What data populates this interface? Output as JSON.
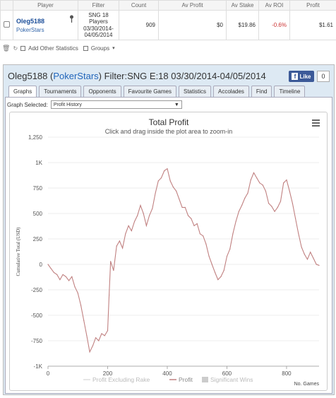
{
  "table": {
    "headers": [
      "",
      "Player",
      "Filter",
      "Count",
      "Av Profit",
      "Av Stake",
      "Av ROI",
      "Profit"
    ],
    "row": {
      "player": "Oleg5188",
      "site": "PokerStars",
      "filter": "SNG 18 Players 03/30/2014-04/05/2014",
      "count": "909",
      "av_profit": "$0",
      "av_stake": "$19.86",
      "av_roi": "-0.6%",
      "profit": "$1.61"
    }
  },
  "toolbar2": {
    "add_stats": "Add Other Statistics",
    "groups": "Groups"
  },
  "panel": {
    "title_player": "Oleg5188",
    "title_site": "PokerStars",
    "title_filter": "Filter:SNG E:18 03/30/2014-04/05/2014",
    "fb_like": "Like",
    "fb_count": "0",
    "tabs": [
      "Graphs",
      "Tournaments",
      "Opponents",
      "Favourite Games",
      "Statistics",
      "Accolades",
      "Find",
      "Timeline"
    ],
    "graph_selected_label": "Graph Selected:",
    "graph_selected_value": "Profit History"
  },
  "colors": {
    "profit_line": "#c08080",
    "grid": "#dddddd",
    "roi": "#cc3333"
  },
  "chart_data": {
    "type": "line",
    "title": "Total Profit",
    "subtitle": "Click and drag inside the plot area to zoom-in",
    "ylabel": "Cumulative Total (USD)",
    "xlabel": "No. Games",
    "ylim": [
      -1000,
      1250
    ],
    "xlim": [
      0,
      909
    ],
    "yticks": [
      "1,250",
      "1K",
      "750",
      "500",
      "250",
      "0",
      "-250",
      "-500",
      "-750",
      "-1K"
    ],
    "xticks": [
      "0",
      "200",
      "400",
      "600",
      "800"
    ],
    "ytick_values": [
      1250,
      1000,
      750,
      500,
      250,
      0,
      -250,
      -500,
      -750,
      -1000
    ],
    "xtick_values": [
      0,
      200,
      400,
      600,
      800
    ],
    "legend": [
      "Profit Excluding Rake",
      "Profit",
      "Significant Wins"
    ],
    "series": [
      {
        "name": "Profit",
        "points": [
          [
            0,
            0
          ],
          [
            10,
            -40
          ],
          [
            20,
            -80
          ],
          [
            30,
            -100
          ],
          [
            40,
            -150
          ],
          [
            50,
            -100
          ],
          [
            60,
            -120
          ],
          [
            70,
            -160
          ],
          [
            80,
            -120
          ],
          [
            90,
            -220
          ],
          [
            100,
            -280
          ],
          [
            110,
            -400
          ],
          [
            120,
            -550
          ],
          [
            130,
            -700
          ],
          [
            140,
            -860
          ],
          [
            150,
            -800
          ],
          [
            160,
            -720
          ],
          [
            170,
            -750
          ],
          [
            180,
            -680
          ],
          [
            190,
            -700
          ],
          [
            200,
            -650
          ],
          [
            205,
            -300
          ],
          [
            210,
            30
          ],
          [
            220,
            -60
          ],
          [
            230,
            180
          ],
          [
            240,
            230
          ],
          [
            250,
            160
          ],
          [
            260,
            300
          ],
          [
            270,
            380
          ],
          [
            280,
            330
          ],
          [
            290,
            420
          ],
          [
            300,
            480
          ],
          [
            310,
            580
          ],
          [
            320,
            500
          ],
          [
            330,
            380
          ],
          [
            340,
            480
          ],
          [
            350,
            550
          ],
          [
            360,
            700
          ],
          [
            370,
            820
          ],
          [
            380,
            850
          ],
          [
            390,
            920
          ],
          [
            400,
            940
          ],
          [
            410,
            820
          ],
          [
            420,
            760
          ],
          [
            430,
            720
          ],
          [
            440,
            640
          ],
          [
            450,
            560
          ],
          [
            460,
            560
          ],
          [
            470,
            480
          ],
          [
            480,
            450
          ],
          [
            490,
            380
          ],
          [
            500,
            400
          ],
          [
            510,
            300
          ],
          [
            520,
            280
          ],
          [
            530,
            200
          ],
          [
            540,
            80
          ],
          [
            550,
            0
          ],
          [
            560,
            -80
          ],
          [
            570,
            -150
          ],
          [
            580,
            -120
          ],
          [
            590,
            -60
          ],
          [
            600,
            80
          ],
          [
            610,
            150
          ],
          [
            620,
            300
          ],
          [
            630,
            420
          ],
          [
            640,
            520
          ],
          [
            650,
            580
          ],
          [
            660,
            650
          ],
          [
            670,
            700
          ],
          [
            680,
            830
          ],
          [
            690,
            900
          ],
          [
            700,
            850
          ],
          [
            710,
            800
          ],
          [
            720,
            780
          ],
          [
            730,
            720
          ],
          [
            740,
            600
          ],
          [
            750,
            570
          ],
          [
            760,
            520
          ],
          [
            770,
            560
          ],
          [
            780,
            620
          ],
          [
            790,
            800
          ],
          [
            800,
            830
          ],
          [
            810,
            720
          ],
          [
            820,
            600
          ],
          [
            830,
            450
          ],
          [
            840,
            300
          ],
          [
            850,
            170
          ],
          [
            860,
            100
          ],
          [
            870,
            50
          ],
          [
            880,
            120
          ],
          [
            890,
            60
          ],
          [
            900,
            0
          ],
          [
            909,
            -10
          ]
        ]
      }
    ]
  }
}
